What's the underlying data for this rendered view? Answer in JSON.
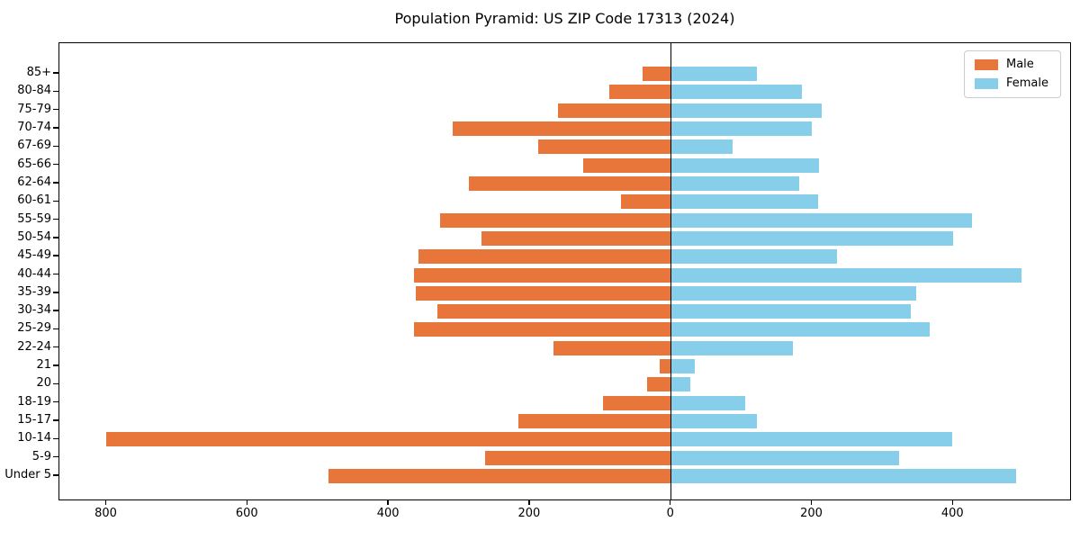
{
  "title": "Population Pyramid: US ZIP Code 17313 (2024)",
  "legend": {
    "male_label": "Male",
    "female_label": "Female"
  },
  "colors": {
    "male": "#e8763b",
    "female": "#87ceeb",
    "axis": "#000000",
    "legend_border": "#cccccc",
    "background": "#ffffff"
  },
  "chart_data": {
    "type": "bar",
    "subtype": "population-pyramid",
    "orientation": "horizontal",
    "title": "Population Pyramid: US ZIP Code 17313 (2024)",
    "xlabel": "",
    "ylabel": "",
    "grid": false,
    "legend_position": "upper right",
    "zero_line": true,
    "categories_top_to_bottom": [
      "85+",
      "80-84",
      "75-79",
      "70-74",
      "67-69",
      "65-66",
      "62-64",
      "60-61",
      "55-59",
      "50-54",
      "45-49",
      "40-44",
      "35-39",
      "30-34",
      "25-29",
      "22-24",
      "21",
      "20",
      "18-19",
      "15-17",
      "10-14",
      "5-9",
      "Under 5"
    ],
    "series": [
      {
        "name": "Male",
        "side": "left",
        "values": [
          40,
          87,
          160,
          309,
          189,
          125,
          287,
          71,
          327,
          269,
          358,
          364,
          362,
          331,
          365,
          167,
          16,
          34,
          96,
          216,
          801,
          264,
          485
        ]
      },
      {
        "name": "Female",
        "side": "right",
        "values": [
          122,
          185,
          214,
          199,
          87,
          210,
          181,
          208,
          426,
          399,
          235,
          496,
          347,
          340,
          366,
          173,
          33,
          27,
          105,
          121,
          398,
          323,
          489
        ]
      }
    ],
    "xlim": [
      -867,
      568
    ],
    "x_ticks": [
      {
        "value": -800,
        "label": "800"
      },
      {
        "value": -600,
        "label": "600"
      },
      {
        "value": -400,
        "label": "400"
      },
      {
        "value": -200,
        "label": "200"
      },
      {
        "value": 0,
        "label": "0"
      },
      {
        "value": 200,
        "label": "200"
      },
      {
        "value": 400,
        "label": "400"
      }
    ]
  }
}
